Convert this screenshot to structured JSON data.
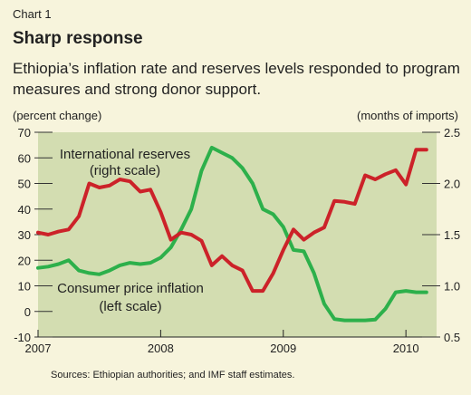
{
  "header": {
    "chart_label": "Chart 1",
    "title": "Sharp response",
    "subtitle": "Ethiopia’s inflation rate and reserves levels responded to program measures and strong donor support."
  },
  "footer": {
    "source": "Sources: Ethiopian authorities; and IMF staff estimates."
  },
  "colors": {
    "plot_background": "#d3ddb1",
    "reserves_line": "#cc2229",
    "inflation_line": "#2db04b",
    "page_background": "#f7f4dc"
  },
  "chart_data": {
    "type": "line",
    "xlabel": "",
    "ylabel_left": "(percent change)",
    "ylabel_right": "(months of imports)",
    "x_ticks": [
      "2007",
      "2008",
      "2009",
      "2010"
    ],
    "x_range": [
      2007.0,
      2010.25
    ],
    "ylim_left": [
      -10,
      70
    ],
    "yticks_left": [
      -10,
      0,
      10,
      20,
      30,
      40,
      50,
      60,
      70
    ],
    "ylim_right": [
      0.5,
      2.5
    ],
    "yticks_right": [
      "0.5",
      "1.0",
      "1.5",
      "2.0",
      "2.5"
    ],
    "grid": false,
    "annotations": [
      {
        "text": "International reserves",
        "series": "reserves"
      },
      {
        "text": "(right scale)",
        "series": "reserves"
      },
      {
        "text": "Consumer price inflation",
        "series": "inflation"
      },
      {
        "text": "(left scale)",
        "series": "inflation"
      }
    ],
    "series": [
      {
        "key": "inflation",
        "axis": "left",
        "color": "#2db04b",
        "x": [
          2007.0,
          2007.083,
          2007.167,
          2007.25,
          2007.333,
          2007.417,
          2007.5,
          2007.583,
          2007.667,
          2007.75,
          2007.833,
          2007.917,
          2008.0,
          2008.083,
          2008.167,
          2008.25,
          2008.333,
          2008.417,
          2008.5,
          2008.583,
          2008.667,
          2008.75,
          2008.833,
          2008.917,
          2009.0,
          2009.083,
          2009.167,
          2009.25,
          2009.333,
          2009.417,
          2009.5,
          2009.583,
          2009.667,
          2009.75,
          2009.833,
          2009.917,
          2010.0,
          2010.083,
          2010.167
        ],
        "values": [
          17,
          17.5,
          18.5,
          20,
          16,
          15,
          14.5,
          16,
          18,
          19,
          18.5,
          19,
          21,
          25,
          32,
          40,
          55,
          64,
          62,
          60,
          56,
          50,
          40,
          38,
          33,
          24,
          23.5,
          15,
          3,
          -3,
          -3.5,
          -3.5,
          -3.5,
          -3.2,
          1,
          7.5,
          8,
          7.5,
          7.5
        ]
      },
      {
        "key": "reserves",
        "axis": "right",
        "color": "#cc2229",
        "x": [
          2007.0,
          2007.083,
          2007.167,
          2007.25,
          2007.333,
          2007.417,
          2007.5,
          2007.583,
          2007.667,
          2007.75,
          2007.833,
          2007.917,
          2008.0,
          2008.083,
          2008.167,
          2008.25,
          2008.333,
          2008.417,
          2008.5,
          2008.583,
          2008.667,
          2008.75,
          2008.833,
          2008.917,
          2009.0,
          2009.083,
          2009.167,
          2009.25,
          2009.333,
          2009.417,
          2009.5,
          2009.583,
          2009.667,
          2009.75,
          2009.833,
          2009.917,
          2010.0,
          2010.083,
          2010.167
        ],
        "values": [
          1.52,
          1.5,
          1.53,
          1.55,
          1.68,
          2.0,
          1.96,
          1.98,
          2.04,
          2.02,
          1.92,
          1.94,
          1.72,
          1.45,
          1.52,
          1.5,
          1.44,
          1.2,
          1.29,
          1.2,
          1.15,
          0.95,
          0.95,
          1.12,
          1.35,
          1.55,
          1.45,
          1.52,
          1.57,
          1.83,
          1.82,
          1.8,
          2.08,
          2.04,
          2.09,
          2.13,
          1.99,
          2.33,
          2.33
        ]
      }
    ]
  }
}
